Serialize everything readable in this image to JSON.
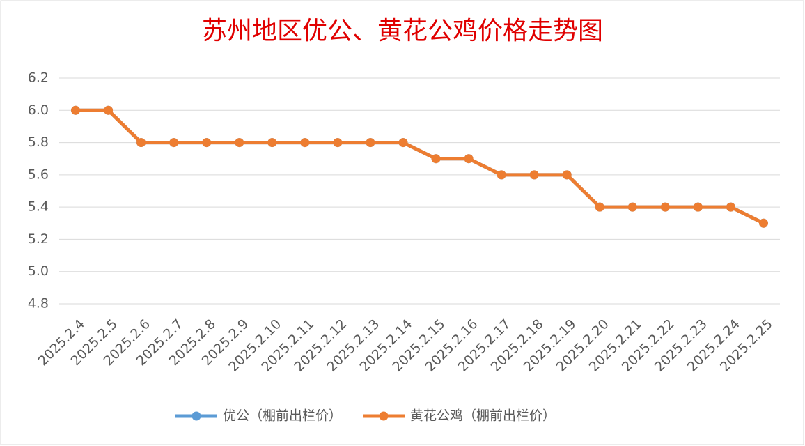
{
  "chart_data": {
    "type": "line",
    "title": "苏州地区优公、黄花公鸡价格走势图",
    "categories": [
      "2025.2.4",
      "2025.2.5",
      "2025.2.6",
      "2025.2.7",
      "2025.2.8",
      "2025.2.9",
      "2025.2.10",
      "2025.2.11",
      "2025.2.12",
      "2025.2.13",
      "2025.2.14",
      "2025.2.15",
      "2025.2.16",
      "2025.2.17",
      "2025.2.18",
      "2025.2.19",
      "2025.2.20",
      "2025.2.21",
      "2025.2.22",
      "2025.2.23",
      "2025.2.24",
      "2025.2.25"
    ],
    "series": [
      {
        "name": "优公（棚前出栏价）",
        "color": "#5b9bd5",
        "values": [
          6.0,
          6.0,
          5.8,
          5.8,
          5.8,
          5.8,
          5.8,
          5.8,
          5.8,
          5.8,
          5.8,
          5.7,
          5.7,
          5.6,
          5.6,
          5.6,
          5.4,
          5.4,
          5.4,
          5.4,
          5.4,
          5.3
        ]
      },
      {
        "name": "黄花公鸡（棚前出栏价）",
        "color": "#ed7d31",
        "values": [
          6.0,
          6.0,
          5.8,
          5.8,
          5.8,
          5.8,
          5.8,
          5.8,
          5.8,
          5.8,
          5.8,
          5.7,
          5.7,
          5.6,
          5.6,
          5.6,
          5.4,
          5.4,
          5.4,
          5.4,
          5.4,
          5.3
        ]
      }
    ],
    "ylim": [
      4.8,
      6.2
    ],
    "yticks": [
      {
        "value": 4.8,
        "label": "4.8"
      },
      {
        "value": 5.0,
        "label": "5.0"
      },
      5.2,
      5.4,
      5.6,
      5.8,
      {
        "value": 6.0,
        "label": "6.0"
      },
      6.2
    ],
    "grid": true,
    "legend": "bottom"
  }
}
